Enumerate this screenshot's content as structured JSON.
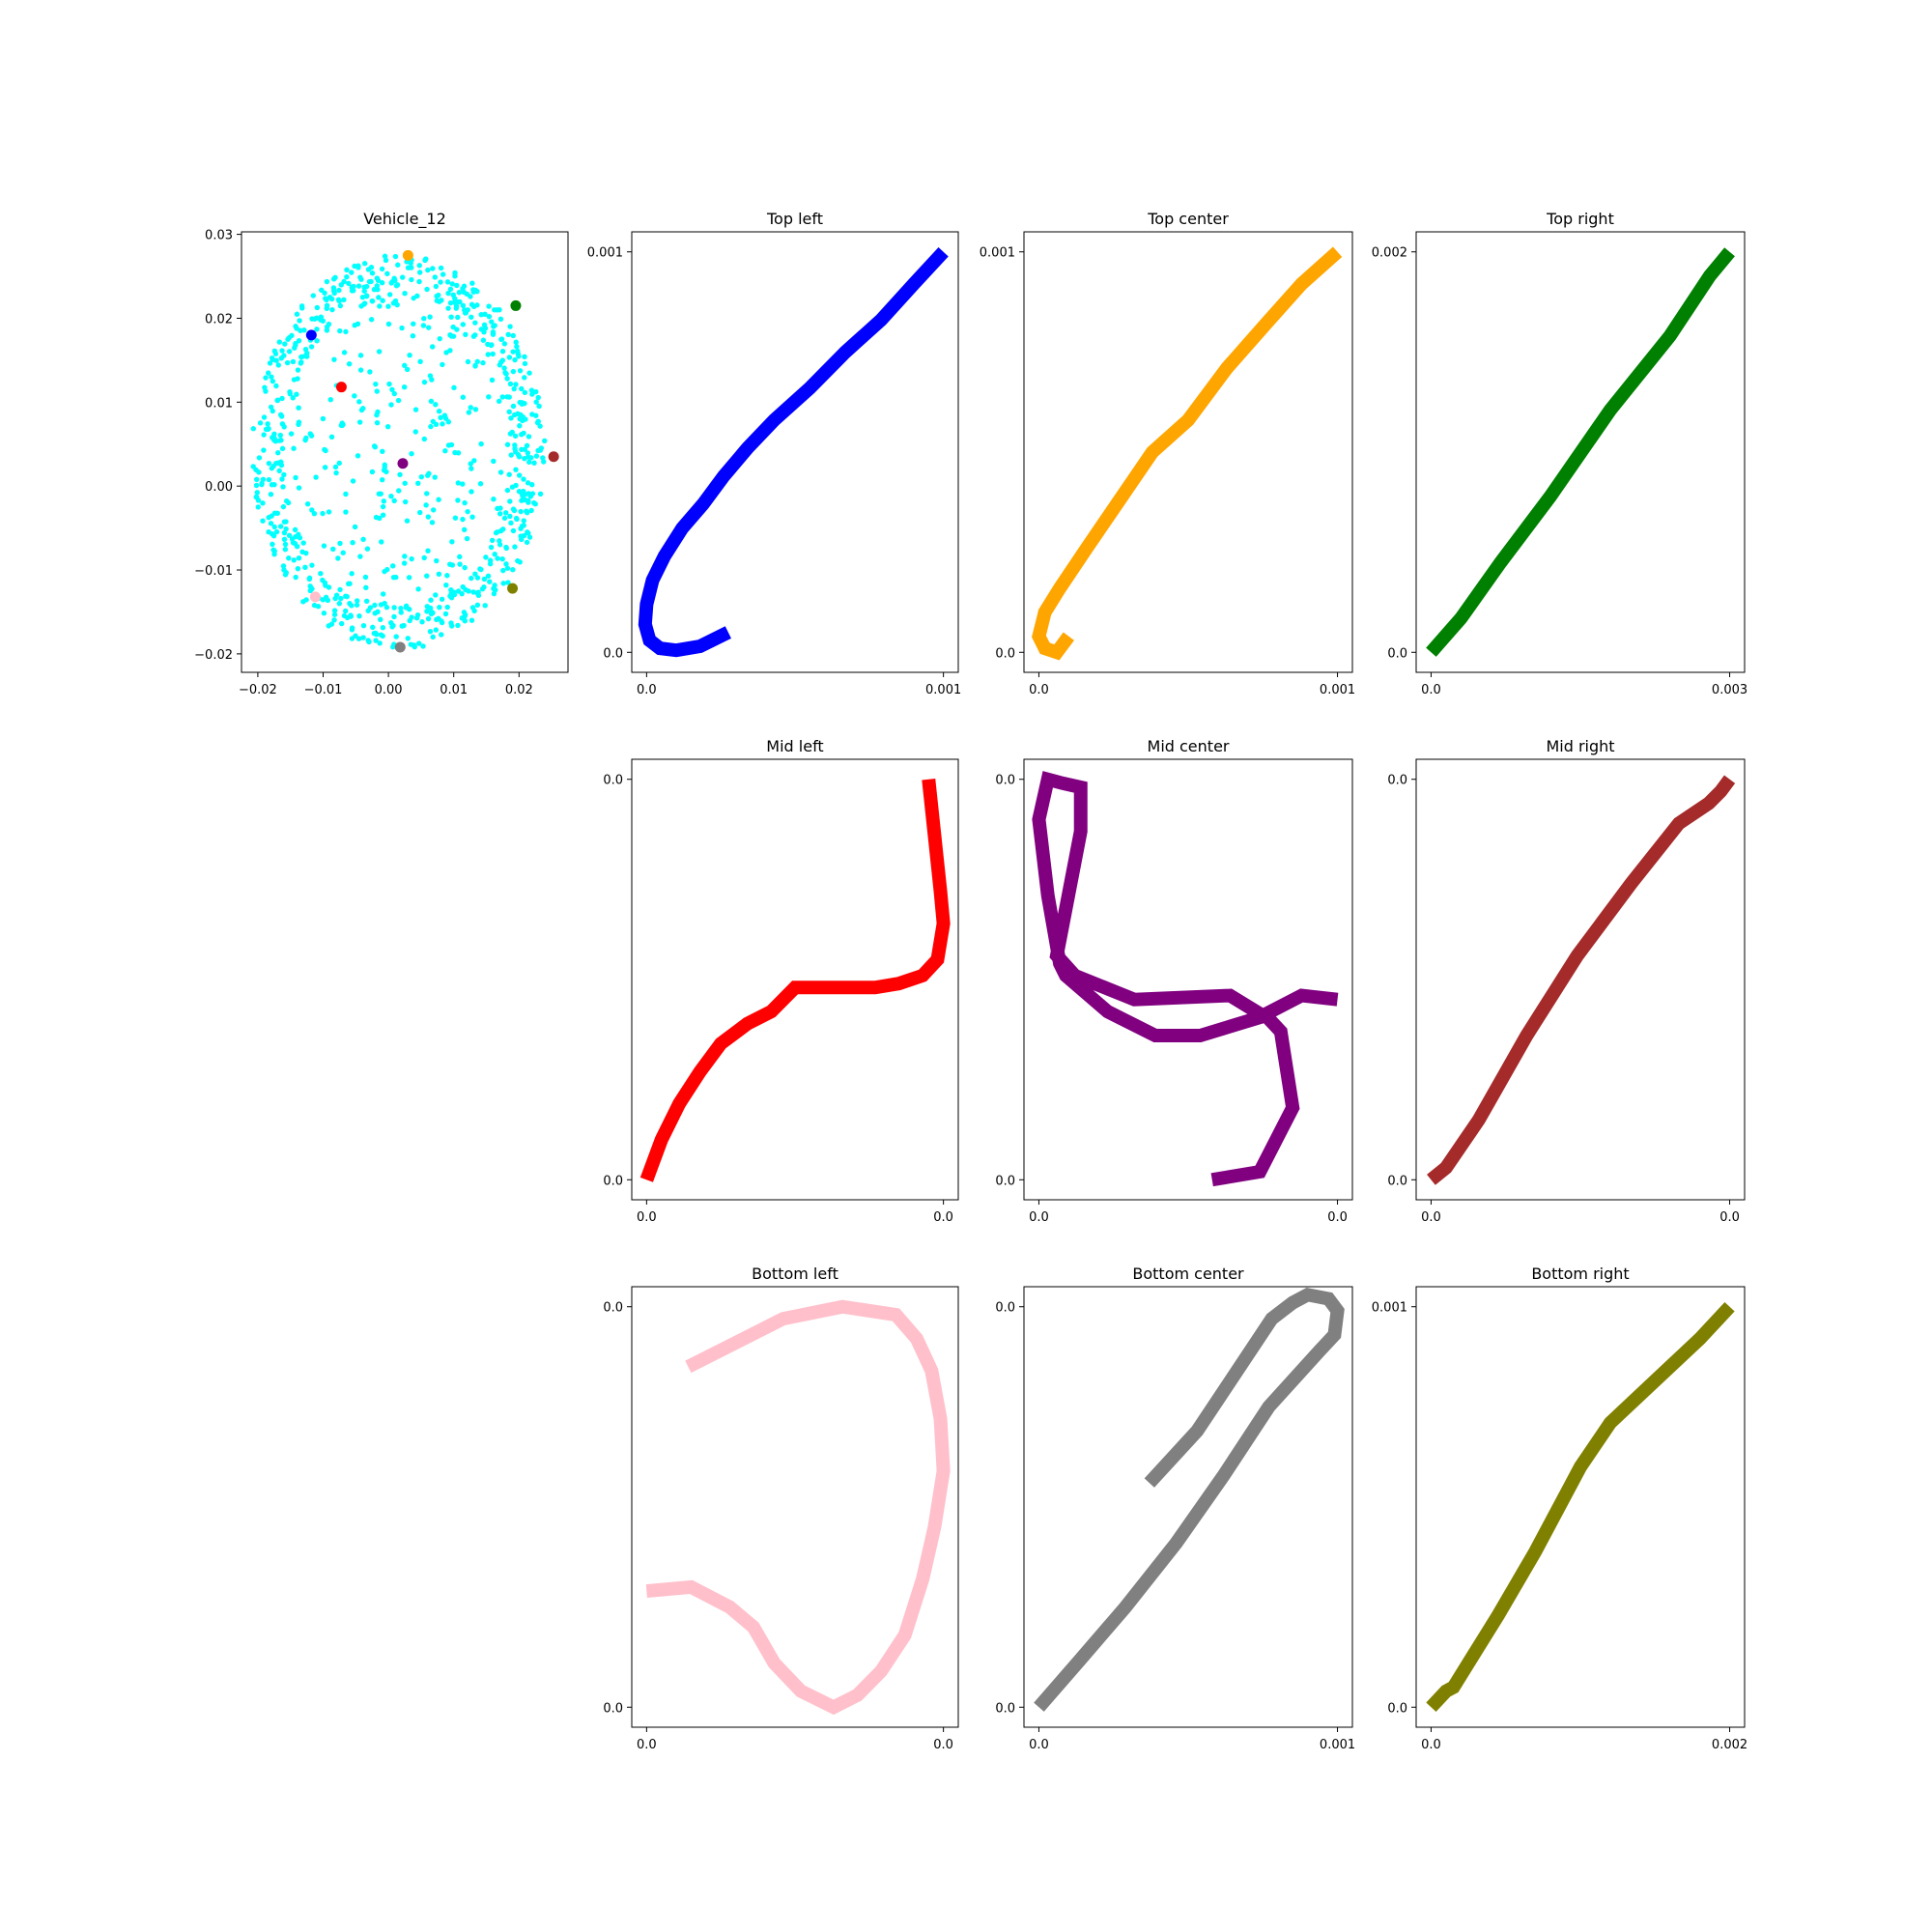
{
  "figure": {
    "background": "#ffffff"
  },
  "chart_data": [
    {
      "type": "scatter",
      "title": "Vehicle_12",
      "xlim": [
        -0.0225,
        0.0275
      ],
      "ylim": [
        -0.0222,
        0.0303
      ],
      "xticks": [
        -0.02,
        -0.01,
        0.0,
        0.01,
        0.02
      ],
      "xtick_labels": [
        "−0.02",
        "−0.01",
        "0.00",
        "0.01",
        "0.02"
      ],
      "yticks": [
        -0.02,
        -0.01,
        0.0,
        0.01,
        0.02,
        0.03
      ],
      "ytick_labels": [
        "−0.02",
        "−0.01",
        "0.00",
        "0.01",
        "0.02",
        "0.03"
      ],
      "background_points": {
        "color": "#00ffff",
        "count": 900,
        "ellipse_center": [
          0.0015,
          0.004
        ],
        "ellipse_radius": [
          0.0225,
          0.0235
        ]
      },
      "highlight_points": [
        {
          "x": -0.0118,
          "y": 0.018,
          "color": "#0000ff"
        },
        {
          "x": 0.003,
          "y": 0.0275,
          "color": "#ffa500"
        },
        {
          "x": 0.0195,
          "y": 0.0215,
          "color": "#008000"
        },
        {
          "x": -0.0072,
          "y": 0.0118,
          "color": "#ff0000"
        },
        {
          "x": 0.0022,
          "y": 0.0027,
          "color": "#800080"
        },
        {
          "x": 0.0253,
          "y": 0.0035,
          "color": "#a52a2a"
        },
        {
          "x": -0.0112,
          "y": -0.0132,
          "color": "#ffc0cb"
        },
        {
          "x": 0.0018,
          "y": -0.0192,
          "color": "#808080"
        },
        {
          "x": 0.019,
          "y": -0.0122,
          "color": "#808000"
        }
      ]
    },
    {
      "type": "line",
      "title": "Top left",
      "color": "#0000ff",
      "xlim": [
        -5e-05,
        0.00105
      ],
      "ylim": [
        -5e-05,
        0.00105
      ],
      "xticks": [
        0.0,
        0.001
      ],
      "xtick_labels": [
        "0.0",
        "0.001"
      ],
      "yticks": [
        0.0,
        0.001
      ],
      "ytick_labels": [
        "0.0",
        "0.001"
      ],
      "x": [
        0.000275,
        0.00018,
        0.0001,
        4.5e-05,
        1e-05,
        -5e-06,
        0.0,
        2e-05,
        6e-05,
        0.00012,
        0.00019,
        0.00026,
        0.00034,
        0.00043,
        0.00055,
        0.00067,
        0.00079,
        0.0009,
        0.001
      ],
      "y": [
        5e-05,
        1.5e-05,
        5e-06,
        1e-05,
        3e-05,
        7e-05,
        0.00012,
        0.00018,
        0.00024,
        0.00031,
        0.00037,
        0.00044,
        0.00051,
        0.00058,
        0.00066,
        0.00075,
        0.00083,
        0.00092,
        0.001
      ]
    },
    {
      "type": "line",
      "title": "Top center",
      "color": "#ffa500",
      "xlim": [
        -5e-05,
        0.00105
      ],
      "ylim": [
        -5e-05,
        0.00105
      ],
      "xticks": [
        0.0,
        0.001
      ],
      "xtick_labels": [
        "0.0",
        "0.001"
      ],
      "yticks": [
        0.0,
        0.001
      ],
      "ytick_labels": [
        "0.0",
        "0.001"
      ],
      "x": [
        0.0001,
        6e-05,
        2e-05,
        0.0,
        2e-05,
        7e-05,
        0.00016,
        0.00027,
        0.00038,
        0.0005,
        0.00063,
        0.00076,
        0.00088,
        0.001
      ],
      "y": [
        4e-05,
        0.0,
        1e-05,
        4e-05,
        0.0001,
        0.00016,
        0.00026,
        0.00038,
        0.0005,
        0.00058,
        0.00071,
        0.00082,
        0.00092,
        0.001
      ]
    },
    {
      "type": "line",
      "title": "Top right",
      "color": "#008000",
      "xlim": [
        -0.00015,
        0.00315
      ],
      "ylim": [
        -0.0001,
        0.0021
      ],
      "xticks": [
        0.0,
        0.003
      ],
      "xtick_labels": [
        "0.0",
        "0.003"
      ],
      "yticks": [
        0.0,
        0.002
      ],
      "ytick_labels": [
        "0.0",
        "0.002"
      ],
      "x": [
        0.0,
        0.0003,
        0.0007,
        0.0012,
        0.0018,
        0.0024,
        0.0028,
        0.003
      ],
      "y": [
        0.0,
        0.00017,
        0.00045,
        0.00078,
        0.00121,
        0.00158,
        0.00188,
        0.002
      ]
    },
    {
      "type": "line",
      "title": "Mid left",
      "color": "#ff0000",
      "xlim": [
        -5e-05,
        0.00105
      ],
      "ylim": [
        -5e-05,
        0.00105
      ],
      "xticks": [
        0.0,
        0.001
      ],
      "xtick_labels": [
        "0.0",
        "0.0"
      ],
      "yticks": [
        0.0,
        0.001
      ],
      "ytick_labels": [
        "0.0",
        "0.0"
      ],
      "x": [
        0.0,
        5e-05,
        0.00011,
        0.00018,
        0.00025,
        0.00034,
        0.00042,
        0.0005,
        0.00059,
        0.00068,
        0.00077,
        0.00085,
        0.00093,
        0.00098,
        0.001,
        0.00099,
        0.00097,
        0.00095
      ],
      "y": [
        0.0,
        0.0001,
        0.00019,
        0.00027,
        0.00034,
        0.00039,
        0.00042,
        0.00048,
        0.00048,
        0.00048,
        0.00048,
        0.00049,
        0.00051,
        0.00055,
        0.00064,
        0.00072,
        0.00086,
        0.001
      ]
    },
    {
      "type": "line",
      "title": "Mid center",
      "color": "#800080",
      "xlim": [
        -5e-05,
        0.00105
      ],
      "ylim": [
        -5e-05,
        0.00105
      ],
      "xticks": [
        0.0,
        0.001
      ],
      "xtick_labels": [
        "0.0",
        "0.0"
      ],
      "yticks": [
        0.0,
        0.001
      ],
      "ytick_labels": [
        "0.0",
        "0.0"
      ],
      "x": [
        0.00058,
        0.00074,
        0.00085,
        0.00081,
        0.00076,
        0.00054,
        0.00039,
        0.00023,
        9e-05,
        7e-05,
        3e-05,
        0.0,
        3e-05,
        8e-05,
        0.00014,
        0.00014,
        6e-05,
        0.00012,
        0.00032,
        0.00064,
        0.00075,
        0.00088,
        0.001
      ],
      "y": [
        0.0,
        2e-05,
        0.00018,
        0.00037,
        0.00041,
        0.00036,
        0.00036,
        0.00042,
        0.00051,
        0.00054,
        0.00071,
        0.0009,
        0.001,
        0.00099,
        0.00098,
        0.00087,
        0.00056,
        0.00051,
        0.00045,
        0.00046,
        0.00041,
        0.00046,
        0.00045
      ]
    },
    {
      "type": "line",
      "title": "Mid right",
      "color": "#a52a2a",
      "xlim": [
        -5e-05,
        0.00105
      ],
      "ylim": [
        -5e-05,
        0.00105
      ],
      "xticks": [
        0.0,
        0.001
      ],
      "xtick_labels": [
        "0.0",
        "0.0"
      ],
      "yticks": [
        0.0,
        0.001
      ],
      "ytick_labels": [
        "0.0",
        "0.0"
      ],
      "x": [
        0.0,
        5e-05,
        0.00016,
        0.00032,
        0.00049,
        0.00067,
        0.00083,
        0.00093,
        0.00097,
        0.001
      ],
      "y": [
        0.0,
        3e-05,
        0.00015,
        0.00036,
        0.00056,
        0.00074,
        0.00089,
        0.00094,
        0.00097,
        0.001
      ]
    },
    {
      "type": "line",
      "title": "Bottom left",
      "color": "#ffc0cb",
      "xlim": [
        -5e-05,
        0.00105
      ],
      "ylim": [
        -5e-05,
        0.00105
      ],
      "xticks": [
        0.0,
        0.001
      ],
      "xtick_labels": [
        "0.0",
        "0.0"
      ],
      "yticks": [
        0.0,
        0.001
      ],
      "ytick_labels": [
        "0.0",
        "0.0"
      ],
      "x": [
        0.0,
        0.00015,
        0.00028,
        0.00036,
        0.00043,
        0.00052,
        0.00063,
        0.00071,
        0.00079,
        0.00087,
        0.00093,
        0.00097,
        0.001,
        0.00099,
        0.00096,
        0.00091,
        0.00084,
        0.00066,
        0.00046,
        0.00014
      ],
      "y": [
        0.00029,
        0.0003,
        0.00025,
        0.0002,
        0.00011,
        4e-05,
        0.0,
        3e-05,
        9e-05,
        0.00018,
        0.00032,
        0.00045,
        0.00059,
        0.00072,
        0.00084,
        0.00092,
        0.00098,
        0.001,
        0.00097,
        0.00085
      ]
    },
    {
      "type": "line",
      "title": "Bottom center",
      "color": "#808080",
      "xlim": [
        -5e-05,
        0.00105
      ],
      "ylim": [
        -5e-05,
        0.00105
      ],
      "xticks": [
        0.0,
        0.001
      ],
      "xtick_labels": [
        "0.0",
        "0.001"
      ],
      "yticks": [
        0.0,
        0.001
      ],
      "ytick_labels": [
        "0.0",
        "0.0"
      ],
      "x": [
        0.0,
        0.00014,
        0.00029,
        0.00046,
        0.00062,
        0.00077,
        0.00094,
        0.00099,
        0.001,
        0.00097,
        0.0009,
        0.00085,
        0.00078,
        0.00053,
        0.00037
      ],
      "y": [
        0.0,
        0.00012,
        0.00025,
        0.00041,
        0.00058,
        0.00075,
        0.00089,
        0.00093,
        0.00099,
        0.00102,
        0.00103,
        0.00101,
        0.00097,
        0.00069,
        0.00056
      ]
    },
    {
      "type": "line",
      "title": "Bottom right",
      "color": "#808000",
      "xlim": [
        -0.0001,
        0.0021
      ],
      "ylim": [
        -5e-05,
        0.00105
      ],
      "xticks": [
        0.0,
        0.002
      ],
      "xtick_labels": [
        "0.0",
        "0.002"
      ],
      "yticks": [
        0.0,
        0.001
      ],
      "ytick_labels": [
        "0.0",
        "0.001"
      ],
      "x": [
        0.0,
        0.0001,
        0.00015,
        0.0003,
        0.00045,
        0.0007,
        0.001,
        0.0012,
        0.0016,
        0.0018,
        0.002
      ],
      "y": [
        0.0,
        4e-05,
        5e-05,
        0.00014,
        0.00023,
        0.00039,
        0.0006,
        0.00071,
        0.00085,
        0.00092,
        0.001
      ]
    }
  ]
}
